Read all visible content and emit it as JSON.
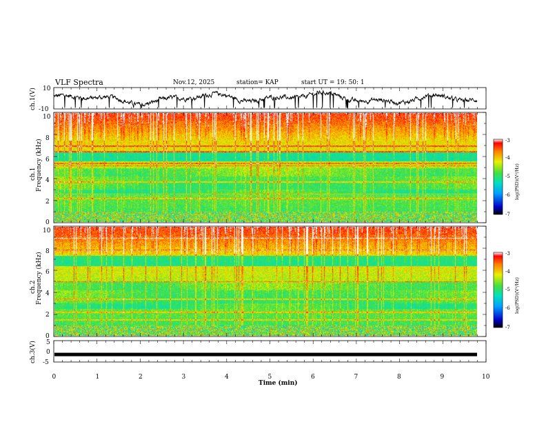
{
  "header": {
    "title": "VLF Spectra",
    "date": "Nov.12, 2025",
    "station": "station= KAP",
    "start": "start  UT =   19: 50: 1"
  },
  "chart_data": [
    {
      "id": "ch1-waveform",
      "type": "line",
      "ylabel": "ch.1(V)",
      "ylim": [
        -10,
        10
      ],
      "yticks": [
        "10",
        "-10"
      ],
      "xlim": [
        0,
        10
      ],
      "description_series": "noisy voltage trace, range approx -10 to 8 V"
    },
    {
      "id": "ch1-spectrogram",
      "type": "heatmap",
      "title": "ch.1",
      "ylabel": "Frequency (kHz)",
      "ylim": [
        0,
        10
      ],
      "yticks": [
        "0",
        "2",
        "4",
        "6",
        "8",
        "10"
      ],
      "xlim": [
        0,
        10
      ],
      "colorbar": {
        "label": "log(PSD)(V²/Hz)",
        "range": [
          -7,
          -3
        ],
        "ticks": [
          "-3",
          "-4",
          "-5",
          "-6",
          "-7"
        ]
      },
      "features": {
        "low_band_top_khz": 1.0,
        "quiet_band_khz": [
          5.6,
          6.4
        ],
        "horizontal_lines_khz": [
          0.3,
          0.6,
          0.9,
          2.2,
          2.6,
          3.7,
          5.2,
          5.4,
          6.5,
          7.0
        ]
      }
    },
    {
      "id": "ch2-spectrogram",
      "type": "heatmap",
      "title": "ch.2",
      "ylabel": "Frequency (kHz)",
      "ylim": [
        0,
        10
      ],
      "yticks": [
        "0",
        "2",
        "4",
        "6",
        "8",
        "10"
      ],
      "xlim": [
        0,
        10
      ],
      "colorbar": {
        "label": "log(PSD)(V²/Hz)",
        "range": [
          -7,
          -3
        ],
        "ticks": [
          "-3",
          "-4",
          "-5",
          "-6",
          "-7"
        ]
      },
      "features": {
        "low_band_top_khz": 1.0,
        "quiet_band_khz": [
          6.4,
          7.4
        ],
        "horizontal_lines_khz": [
          0.3,
          0.6,
          1.5,
          2.2,
          3.4,
          5.0,
          7.9,
          9.0
        ]
      }
    },
    {
      "id": "ch3-waveform",
      "type": "line",
      "ylabel": "ch.3(V)",
      "ylim": [
        -5,
        5
      ],
      "yticks": [
        "5",
        "0",
        "-5"
      ],
      "xlim": [
        0,
        10
      ],
      "values_approx": "constant at about -1.5 V"
    }
  ],
  "xaxis": {
    "label": "Time  (min)",
    "ticks": [
      "0",
      "1",
      "2",
      "3",
      "4",
      "5",
      "6",
      "7",
      "8",
      "9",
      "10"
    ]
  }
}
